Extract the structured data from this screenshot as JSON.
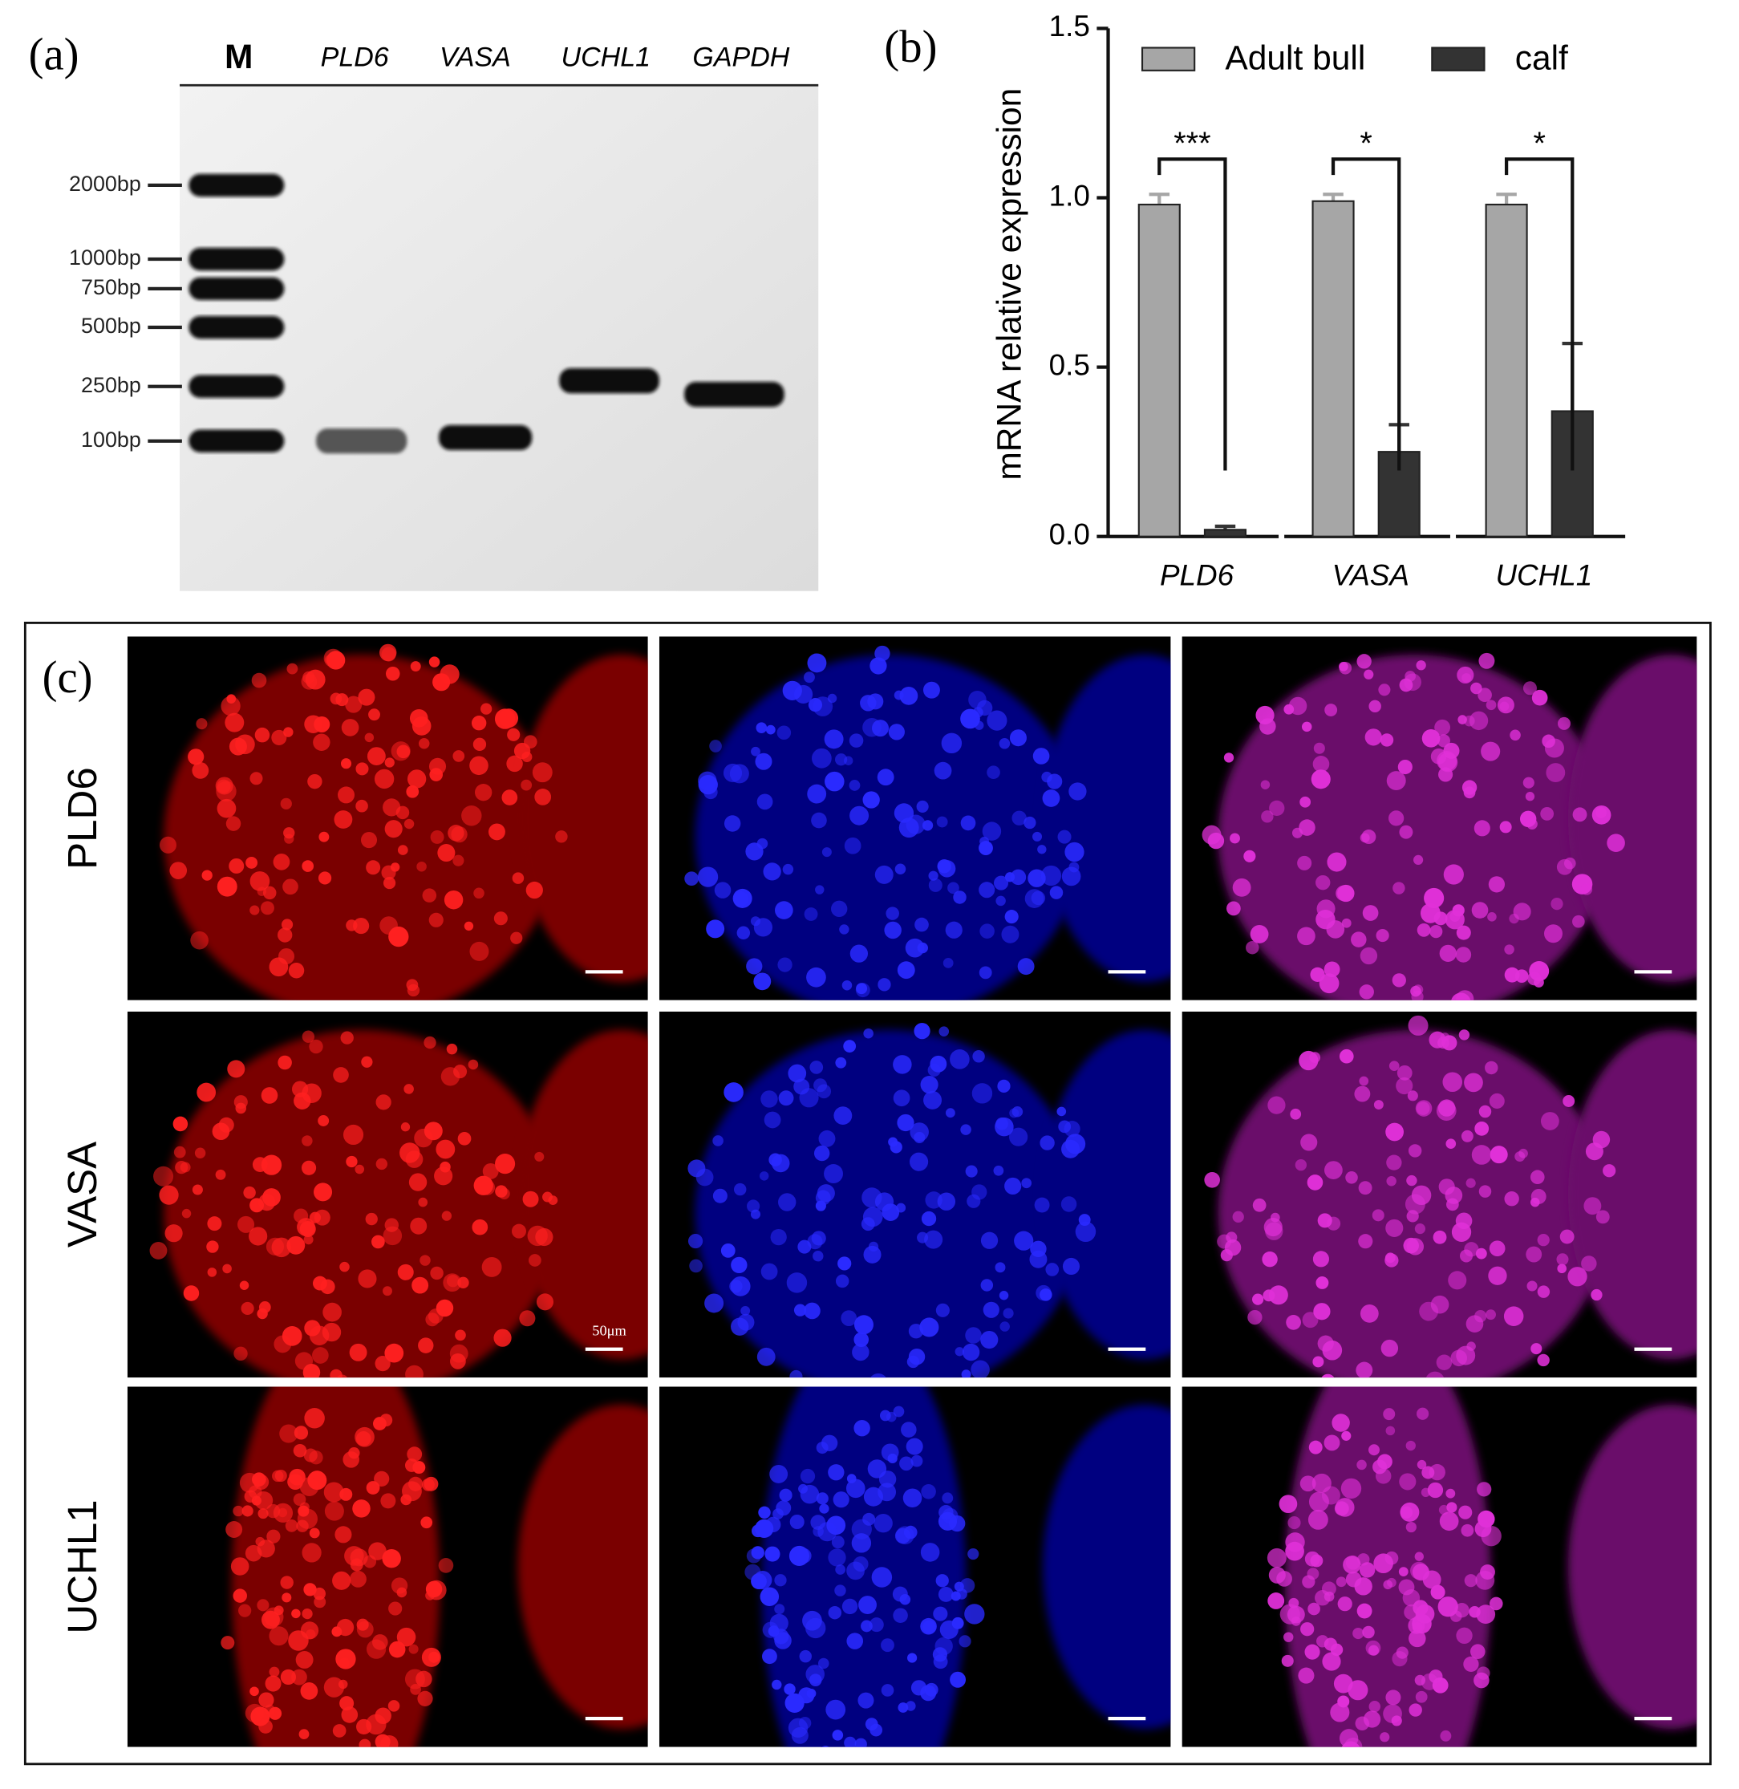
{
  "panel_a": {
    "label": "(a)",
    "lanes": [
      "M",
      "PLD6",
      "VASA",
      "UCHL1",
      "GAPDH"
    ],
    "marker_labels": [
      "2000bp",
      "1000bp",
      "750bp",
      "500bp",
      "250bp",
      "100bp"
    ]
  },
  "chart_data": {
    "type": "bar",
    "panel_label": "(b)",
    "y_label": "mRNA relative expression",
    "categories": [
      "PLD6",
      "VASA",
      "UCHL1"
    ],
    "series": [
      {
        "name": "Adult bull",
        "color": "#a6a6a6",
        "values": [
          0.98,
          0.99,
          0.98
        ],
        "errors": [
          0.03,
          0.02,
          0.03
        ]
      },
      {
        "name": "calf",
        "color": "#333333",
        "values": [
          0.02,
          0.25,
          0.37
        ],
        "errors": [
          0.01,
          0.08,
          0.2
        ]
      }
    ],
    "significance": [
      "***",
      "*",
      "*"
    ],
    "ylim": [
      0,
      1.5
    ],
    "yticks": [
      {
        "value": 0,
        "label": "0.0"
      },
      0.5,
      {
        "value": 1,
        "label": "1.0"
      },
      1.5
    ]
  },
  "panel_c": {
    "label": "(c)",
    "rows": [
      "PLD6",
      "VASA",
      "UCHL1"
    ],
    "scale_label": "50μm"
  }
}
